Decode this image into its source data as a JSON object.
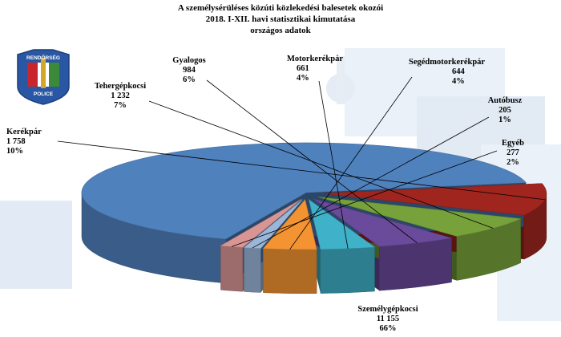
{
  "chart_data": {
    "type": "pie",
    "title_lines": [
      "A személysérüléses közúti közlekedési balesetek okozói",
      "2018. I-XII. havi statisztikai kimutatása",
      "országos adatok"
    ],
    "logo": {
      "top_text": "RENDŐRSÉG",
      "bottom_text": "POLICE"
    },
    "slices": [
      {
        "name": "Személygépkocsi",
        "value_label": "11 155",
        "value": 11155,
        "percent_label": "66%",
        "color": "#4f81bd"
      },
      {
        "name": "Kerékpár",
        "value_label": "1 758",
        "value": 1758,
        "percent_label": "10%",
        "color": "#a0251f"
      },
      {
        "name": "Tehergépkocsi",
        "value_label": "1 232",
        "value": 1232,
        "percent_label": "7%",
        "color": "#77a13a"
      },
      {
        "name": "Gyalogos",
        "value_label": "984",
        "value": 984,
        "percent_label": "6%",
        "color": "#6a4a9a"
      },
      {
        "name": "Motorkerékpár",
        "value_label": "661",
        "value": 661,
        "percent_label": "4%",
        "color": "#3fb1c8"
      },
      {
        "name": "Segédmotorkerékpár",
        "value_label": "644",
        "value": 644,
        "percent_label": "4%",
        "color": "#f39332"
      },
      {
        "name": "Autóbusz",
        "value_label": "205",
        "value": 205,
        "percent_label": "1%",
        "color": "#9ab7d9"
      },
      {
        "name": "Egyéb",
        "value_label": "277",
        "value": 277,
        "percent_label": "2%",
        "color": "#d99594"
      }
    ]
  }
}
